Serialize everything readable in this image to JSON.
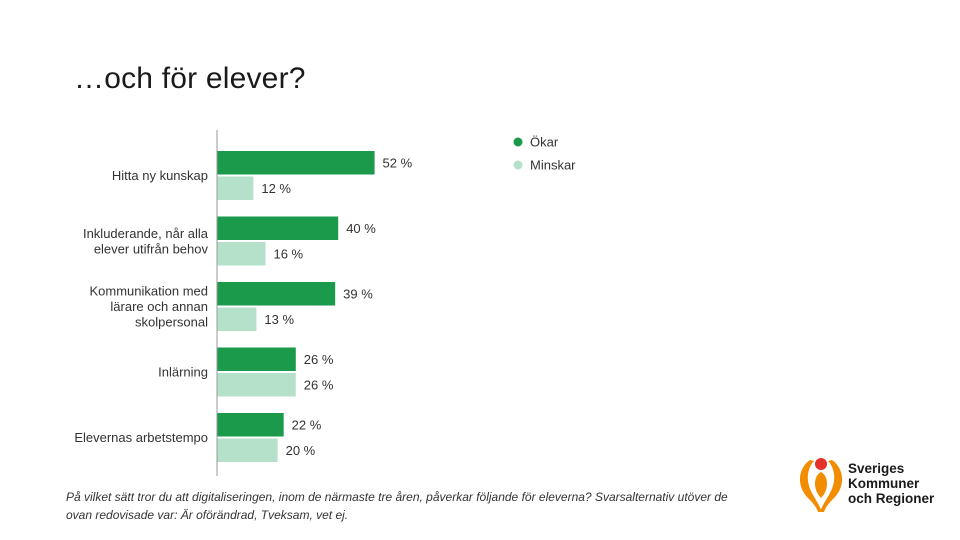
{
  "title": "…och för elever?",
  "footnote": "På vilket sätt tror du att digitaliseringen, inom de närmaste tre åren, påverkar följande för eleverna? Svarsalternativ utöver de ovan redovisade var: Är oförändrad, Tveksam, vet ej.",
  "logo": {
    "line1": "Sveriges",
    "line2": "Kommuner",
    "line3": "och Regioner"
  },
  "colors": {
    "okar": "#1a9a4a",
    "minskar": "#b5e0c9",
    "logo_orange": "#f28c00",
    "logo_red": "#e4322b"
  },
  "chart_data": {
    "type": "bar",
    "orientation": "horizontal",
    "categories": [
      [
        "Hitta ny kunskap"
      ],
      [
        "Inkluderande, når alla",
        "elever utifrån behov"
      ],
      [
        "Kommunikation med",
        "lärare och annan",
        "skolpersonal"
      ],
      [
        "Inlärning"
      ],
      [
        "Elevernas arbetstempo"
      ]
    ],
    "series": [
      {
        "name": "Ökar",
        "values": [
          52,
          40,
          39,
          26,
          22
        ],
        "labels": [
          "52 %",
          "40 %",
          "39 %",
          "26 %",
          "22 %"
        ]
      },
      {
        "name": "Minskar",
        "values": [
          12,
          16,
          13,
          26,
          20
        ],
        "labels": [
          "12 %",
          "16 %",
          "13 %",
          "26 %",
          "20 %"
        ]
      }
    ],
    "xlim": [
      0,
      100
    ],
    "grid": false,
    "legend_position": "top-right"
  }
}
